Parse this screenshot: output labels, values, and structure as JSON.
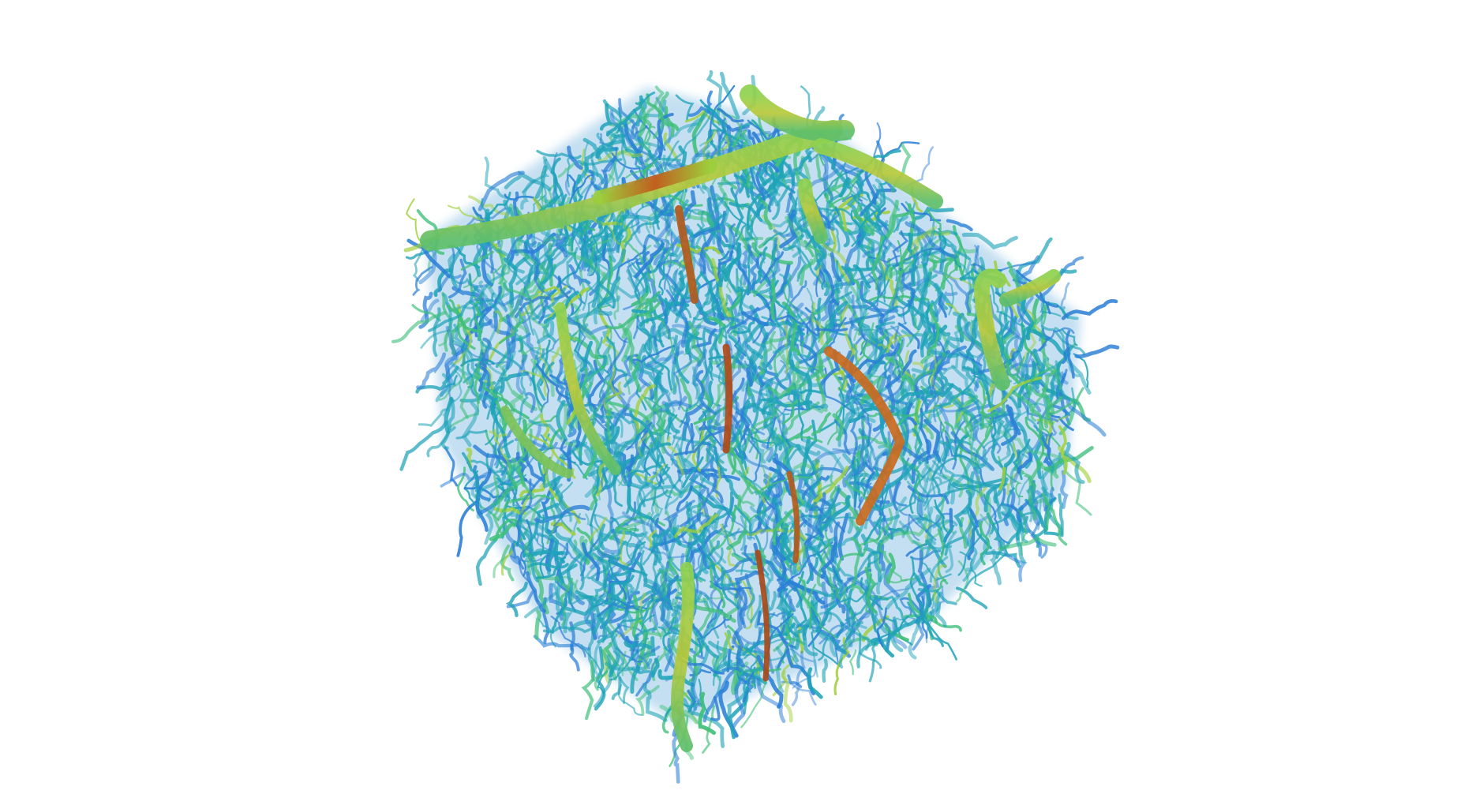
{
  "scene": {
    "background": "#ffffff",
    "subject": "volume-rendered-vascular-network-cube",
    "colormap": [
      "#2b7fd6",
      "#1fa3b8",
      "#3fbf7a",
      "#9fcf3a",
      "#d9b020",
      "#d2691e",
      "#7a1e0a"
    ],
    "seed": 42
  }
}
